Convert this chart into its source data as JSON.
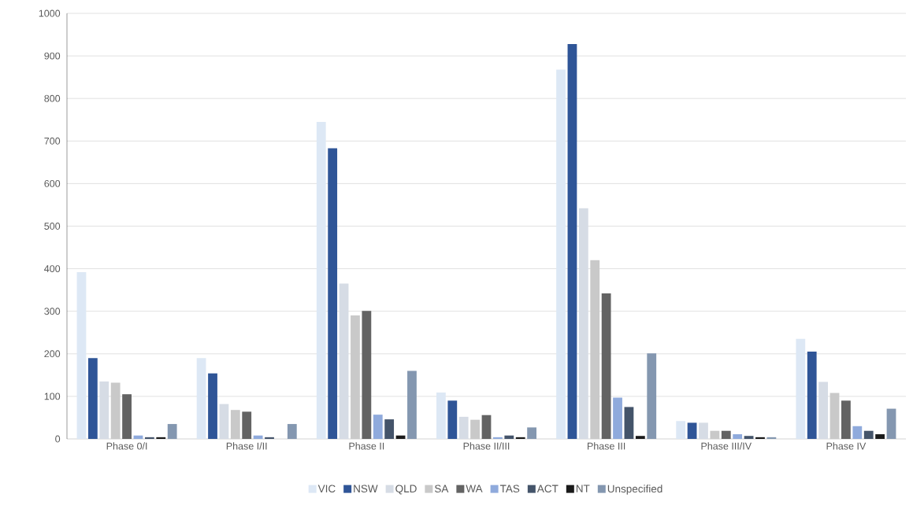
{
  "chart_data": {
    "type": "bar",
    "categories": [
      "Phase 0/I",
      "Phase I/II",
      "Phase II",
      "Phase II/III",
      "Phase III",
      "Phase III/IV",
      "Phase IV"
    ],
    "series": [
      {
        "name": "VIC",
        "color": "#dde8f5",
        "values": [
          392,
          190,
          745,
          109,
          868,
          42,
          235
        ]
      },
      {
        "name": "NSW",
        "color": "#2f5597",
        "values": [
          190,
          154,
          683,
          90,
          928,
          38,
          205
        ]
      },
      {
        "name": "QLD",
        "color": "#d6dce5",
        "values": [
          135,
          82,
          365,
          52,
          542,
          38,
          134
        ]
      },
      {
        "name": "SA",
        "color": "#c9c9c9",
        "values": [
          132,
          68,
          290,
          45,
          420,
          19,
          108
        ]
      },
      {
        "name": "WA",
        "color": "#636363",
        "values": [
          105,
          64,
          301,
          56,
          342,
          19,
          90
        ]
      },
      {
        "name": "TAS",
        "color": "#8faadc",
        "values": [
          8,
          8,
          57,
          4,
          97,
          11,
          30
        ]
      },
      {
        "name": "ACT",
        "color": "#44546a",
        "values": [
          4,
          4,
          46,
          8,
          75,
          7,
          19
        ]
      },
      {
        "name": "NT",
        "color": "#1a1a1a",
        "values": [
          4,
          0,
          8,
          4,
          7,
          4,
          11
        ]
      },
      {
        "name": "Unspecified",
        "color": "#8497b0",
        "values": [
          35,
          35,
          160,
          27,
          201,
          4,
          71
        ]
      }
    ],
    "ylim": [
      0,
      1000
    ],
    "yticks": [
      0,
      100,
      200,
      300,
      400,
      500,
      600,
      700,
      800,
      900,
      1000
    ],
    "grid": "y",
    "legend": "bottom"
  }
}
